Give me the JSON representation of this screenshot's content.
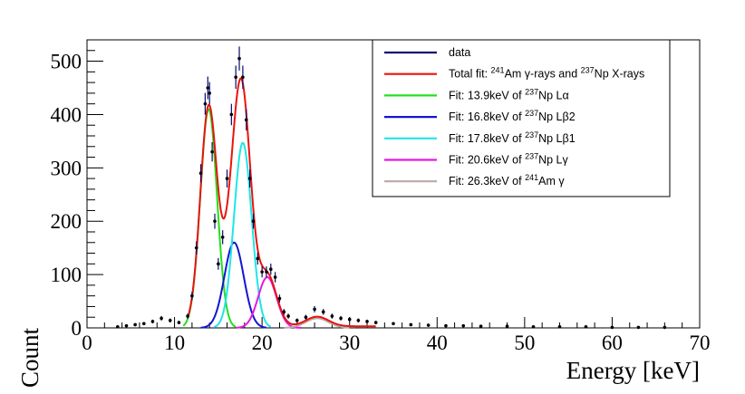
{
  "chart_data": {
    "type": "line",
    "title": "",
    "xlabel": "Energy [keV]",
    "ylabel": "Count",
    "xlim": [
      0,
      70
    ],
    "ylim": [
      0,
      540
    ],
    "xticks": [
      "0",
      "10",
      "20",
      "30",
      "40",
      "50",
      "60",
      "70"
    ],
    "yticks": [
      "0",
      "100",
      "200",
      "300",
      "400",
      "500"
    ],
    "xtick_values": [
      0,
      10,
      20,
      30,
      40,
      50,
      60,
      70
    ],
    "ytick_values": [
      0,
      100,
      200,
      300,
      400,
      500
    ],
    "legend_position": "top-right",
    "series": [
      {
        "name": "data",
        "legend": {
          "pre": "data",
          "parts": []
        },
        "color": "#0a0a6e",
        "kind": "points",
        "x": [
          3.5,
          4.5,
          5.5,
          6.5,
          7.5,
          8.5,
          9.5,
          10.5,
          11.5,
          12.0,
          12.5,
          13.0,
          13.5,
          13.8,
          14.0,
          14.3,
          14.6,
          15.0,
          15.5,
          16.0,
          16.5,
          17.0,
          17.4,
          17.8,
          18.2,
          18.6,
          19.0,
          19.5,
          20.0,
          20.5,
          21.0,
          21.5,
          22.0,
          22.5,
          23.0,
          24.0,
          25.0,
          26.0,
          27.0,
          28.0,
          29.0,
          30.0,
          31.0,
          32.0,
          33.0,
          35.0,
          37.0,
          39.0,
          41.0,
          43.0,
          45.0,
          48.0,
          51.0,
          54.0,
          57.0,
          60.0,
          63.0,
          66.0
        ],
        "values": [
          2,
          4,
          6,
          8,
          12,
          18,
          14,
          10,
          22,
          60,
          150,
          290,
          420,
          450,
          440,
          330,
          200,
          120,
          170,
          280,
          400,
          470,
          505,
          470,
          390,
          280,
          200,
          130,
          105,
          105,
          110,
          95,
          55,
          30,
          22,
          14,
          20,
          35,
          30,
          22,
          18,
          16,
          14,
          12,
          10,
          8,
          6,
          5,
          4,
          4,
          3,
          3,
          2,
          2,
          2,
          1,
          1,
          1
        ]
      },
      {
        "name": "Total fit",
        "legend": {
          "pre": "Total fit: ",
          "parts": [
            {
              "sup": "241"
            },
            {
              "text": "Am γ-rays and "
            },
            {
              "sup": "237"
            },
            {
              "text": "Np X-rays"
            }
          ]
        },
        "color": "#e8140e",
        "kind": "total",
        "xrange": [
          11.5,
          33
        ]
      },
      {
        "name": "13.9keV Np Lα",
        "legend": {
          "pre": "Fit: 13.9keV of ",
          "parts": [
            {
              "sup": "237"
            },
            {
              "text": "Np Lα"
            }
          ]
        },
        "color": "#22e01e",
        "kind": "gauss",
        "peak": {
          "mu": 13.9,
          "amp": 410,
          "sigma": 0.95
        },
        "xrange": [
          11.0,
          17.0
        ]
      },
      {
        "name": "16.8keV Np Lβ2",
        "legend": {
          "pre": "Fit: 16.8keV of ",
          "parts": [
            {
              "sup": "237"
            },
            {
              "text": "Np Lβ2"
            }
          ]
        },
        "color": "#1414d2",
        "kind": "gauss",
        "peak": {
          "mu": 16.8,
          "amp": 160,
          "sigma": 1.1
        },
        "xrange": [
          13.0,
          20.5
        ]
      },
      {
        "name": "17.8keV Np Lβ1",
        "legend": {
          "pre": "Fit: 17.8keV of ",
          "parts": [
            {
              "sup": "237"
            },
            {
              "text": "Np Lβ1"
            }
          ]
        },
        "color": "#1ee6e6",
        "kind": "gauss",
        "peak": {
          "mu": 17.8,
          "amp": 347,
          "sigma": 1.0
        },
        "xrange": [
          14.5,
          21.0
        ]
      },
      {
        "name": "20.6keV Np Lγ",
        "legend": {
          "pre": "Fit: 20.6keV of ",
          "parts": [
            {
              "sup": "237"
            },
            {
              "text": "Np Lγ"
            }
          ]
        },
        "color": "#e619e0",
        "kind": "gauss",
        "peak": {
          "mu": 20.6,
          "amp": 95,
          "sigma": 1.05
        },
        "xrange": [
          17.0,
          24.5
        ]
      },
      {
        "name": "26.3keV Am γ",
        "legend": {
          "pre": "Fit: 26.3keV of ",
          "parts": [
            {
              "sup": "241"
            },
            {
              "text": "Am γ"
            }
          ]
        },
        "color": "#b9aaa5",
        "kind": "gauss",
        "peak": {
          "mu": 26.3,
          "amp": 18,
          "sigma": 1.3
        },
        "xrange": [
          22.5,
          30.0
        ]
      }
    ]
  }
}
